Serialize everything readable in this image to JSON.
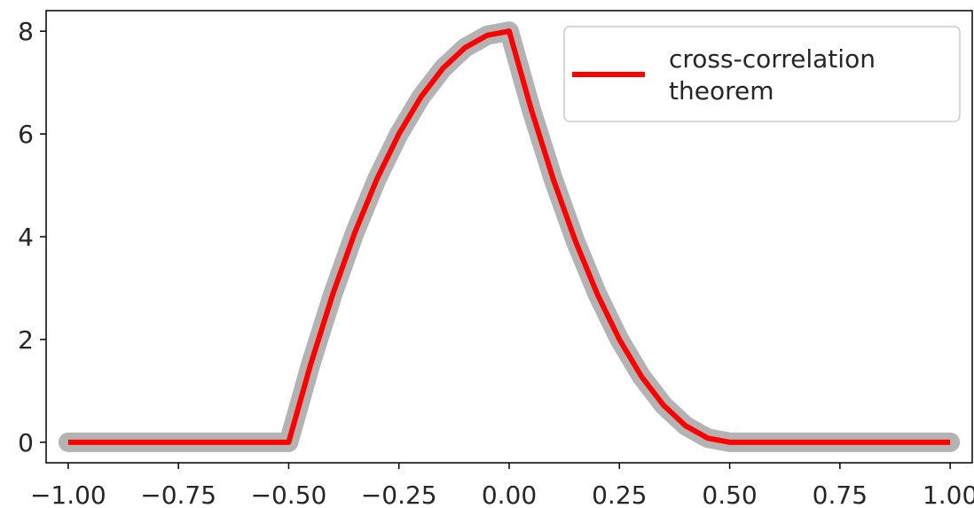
{
  "chart_data": {
    "type": "line",
    "title": "",
    "xlabel": "",
    "ylabel": "",
    "xlim": [
      -1.05,
      1.05
    ],
    "ylim": [
      -0.4,
      8.4
    ],
    "grid": false,
    "legend_placement": "top-right",
    "x_ticks": [
      -1.0,
      -0.75,
      -0.5,
      -0.25,
      0.0,
      0.25,
      0.5,
      0.75,
      1.0
    ],
    "x_tick_labels": [
      "−1.00",
      "−0.75",
      "−0.50",
      "−0.25",
      "0.00",
      "0.25",
      "0.50",
      "0.75",
      "1.00"
    ],
    "y_ticks": [
      0,
      2,
      4,
      6,
      8
    ],
    "y_tick_labels": [
      "0",
      "2",
      "4",
      "6",
      "8"
    ],
    "legend": {
      "entries": [
        "cross-correlation\ntheorem"
      ]
    },
    "colors": {
      "main_series": "#ff0000",
      "halo_series": "#b3b3b3",
      "axis": "#000000",
      "legend_border": "#cccccc"
    },
    "series": [
      {
        "name": "cross-correlation theorem",
        "color": "#ff0000",
        "x": [
          -1.0,
          -0.75,
          -0.5,
          -0.45,
          -0.4,
          -0.35,
          -0.3,
          -0.25,
          -0.2,
          -0.15,
          -0.1,
          -0.05,
          0.0,
          0.05,
          0.1,
          0.15,
          0.2,
          0.25,
          0.3,
          0.35,
          0.4,
          0.45,
          0.5,
          0.75,
          1.0
        ],
        "y": [
          0,
          0,
          0,
          1.52,
          2.88,
          4.08,
          5.12,
          6.0,
          6.72,
          7.28,
          7.68,
          7.92,
          8.0,
          6.48,
          5.12,
          3.92,
          2.88,
          2.0,
          1.28,
          0.72,
          0.32,
          0.08,
          0,
          0,
          0
        ]
      },
      {
        "name": "",
        "color": "#b3b3b3",
        "x": [
          -1.0,
          -0.75,
          -0.5,
          -0.45,
          -0.4,
          -0.35,
          -0.3,
          -0.25,
          -0.2,
          -0.15,
          -0.1,
          -0.05,
          0.0,
          0.05,
          0.1,
          0.15,
          0.2,
          0.25,
          0.3,
          0.35,
          0.4,
          0.45,
          0.5,
          0.75,
          1.0
        ],
        "y": [
          0,
          0,
          0,
          1.52,
          2.88,
          4.08,
          5.12,
          6.0,
          6.72,
          7.28,
          7.68,
          7.92,
          8.0,
          6.48,
          5.12,
          3.92,
          2.88,
          2.0,
          1.28,
          0.72,
          0.32,
          0.08,
          0,
          0,
          0
        ]
      }
    ]
  }
}
